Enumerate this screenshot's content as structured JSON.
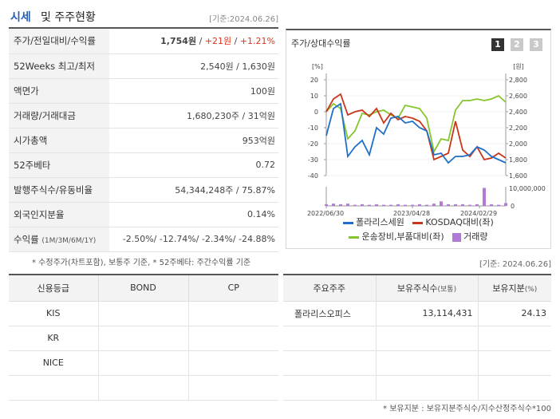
{
  "header": {
    "title_main": "시세",
    "title_sub": "및 주주현황",
    "date": "[기준:2024.06.26]"
  },
  "quote_rows": [
    {
      "label": "주가/전일대비/수익률",
      "price": "1,754원",
      "sep1": " / ",
      "change": "+21원",
      "sep2": " / ",
      "rate": "+1.21%"
    },
    {
      "label": "52Weeks 최고/최저",
      "value": "2,540원 / 1,630원"
    },
    {
      "label": "액면가",
      "value": "100원"
    },
    {
      "label": "거래량/거래대금",
      "value": "1,680,230주 / 31억원"
    },
    {
      "label": "시가총액",
      "value": "953억원"
    },
    {
      "label": "52주베타",
      "value": "0.72"
    },
    {
      "label": "발행주식수/유동비율",
      "value": "54,344,248주 / 75.87%"
    },
    {
      "label": "외국인지분율",
      "value": "0.14%"
    },
    {
      "label": "수익률",
      "label_sub": "(1M/3M/6M/1Y)",
      "value": "-2.50%/ -12.74%/ -2.34%/ -24.88%"
    }
  ],
  "quote_note": "* 수정주가(차트포함), 보통주 기준, * 52주베타: 주간수익률 기준",
  "chart": {
    "title": "주가/상대수익률",
    "tabs": [
      "1",
      "2",
      "3"
    ],
    "left_unit": "[%]",
    "right_unit": "[원]",
    "volume_label": "10,000,000",
    "volume_zero": "0",
    "legend": {
      "s1": "폴라리스세원",
      "s2": "KOSDAQ대비(좌)",
      "s3": "운송장비,부품대비(좌)",
      "s4": "거래량"
    },
    "colors": {
      "s1": "#1f6fc9",
      "s2": "#c9361a",
      "s3": "#86c62c",
      "s4": "#b07ad6"
    }
  },
  "chart_data": {
    "type": "line",
    "x_ticks": [
      "2022/06/30",
      "2023/04/28",
      "2024/02/29"
    ],
    "y_left": {
      "ticks": [
        20,
        10,
        0,
        -10,
        -20,
        -30,
        -40
      ],
      "range": [
        -40,
        20
      ],
      "unit": "[%]"
    },
    "y_right": {
      "ticks": [
        "2,800",
        "2,600",
        "2,400",
        "2,200",
        "2,000",
        "1,800",
        "1,600"
      ],
      "range": [
        1600,
        2800
      ],
      "unit": "[원]"
    },
    "x": [
      0,
      1,
      2,
      3,
      4,
      5,
      6,
      7,
      8,
      9,
      10,
      11,
      12,
      13,
      14,
      15,
      16,
      17,
      18,
      19,
      20,
      21,
      22,
      23,
      24,
      25
    ],
    "series": [
      {
        "name": "폴라리스세원",
        "axis": "left",
        "values": [
          -15,
          2,
          5,
          -28,
          -22,
          -18,
          -27,
          -10,
          -14,
          -4,
          -3,
          -7,
          -6,
          -10,
          -12,
          -27,
          -26,
          -32,
          -28,
          -28,
          -27,
          -22,
          -24,
          -28,
          -30,
          -32
        ]
      },
      {
        "name": "KOSDAQ대비(좌)",
        "axis": "left",
        "values": [
          0,
          8,
          11,
          -2,
          0,
          1,
          -3,
          2,
          -7,
          -1,
          -5,
          -3,
          -4,
          -6,
          -12,
          -30,
          -28,
          -26,
          -6,
          -24,
          -28,
          -22,
          -30,
          -29,
          -26,
          -29
        ]
      },
      {
        "name": "운송장비,부품대비(좌)",
        "axis": "left",
        "values": [
          0,
          5,
          2,
          -17,
          -12,
          -1,
          -2,
          0,
          1,
          -2,
          -4,
          4,
          3,
          2,
          -4,
          -25,
          -17,
          -18,
          1,
          7,
          7,
          8,
          7,
          8,
          10,
          6
        ]
      },
      {
        "name": "거래량",
        "axis": "volume",
        "values": [
          0.3,
          0.4,
          0.3,
          0.4,
          0.2,
          0.3,
          0.2,
          0.3,
          0.2,
          0.2,
          0.3,
          0.2,
          0.2,
          0.3,
          0.2,
          0.4,
          0.8,
          0.3,
          0.3,
          0.3,
          0.2,
          0.3,
          3.2,
          0.3,
          0.2,
          0.5
        ]
      }
    ],
    "volume_max": 10000000
  },
  "holder_date": "[기준: 2024.06.26]",
  "credit": {
    "headers": [
      "신용등급",
      "BOND",
      "CP"
    ],
    "rows": [
      [
        "KIS",
        "",
        ""
      ],
      [
        "KR",
        "",
        ""
      ],
      [
        "NICE",
        "",
        ""
      ],
      [
        "",
        "",
        ""
      ]
    ]
  },
  "holders": {
    "headers": [
      "주요주주",
      "보유주식수",
      "(보통)",
      "보유지분",
      "(%)"
    ],
    "rows": [
      [
        "폴라리스오피스",
        "13,114,431",
        "24.13"
      ],
      [
        "",
        "",
        ""
      ],
      [
        "",
        "",
        ""
      ],
      [
        "",
        "",
        ""
      ]
    ]
  },
  "holder_note": "* 보유지분 : 보유지분주식수/지수산정주식수*100"
}
